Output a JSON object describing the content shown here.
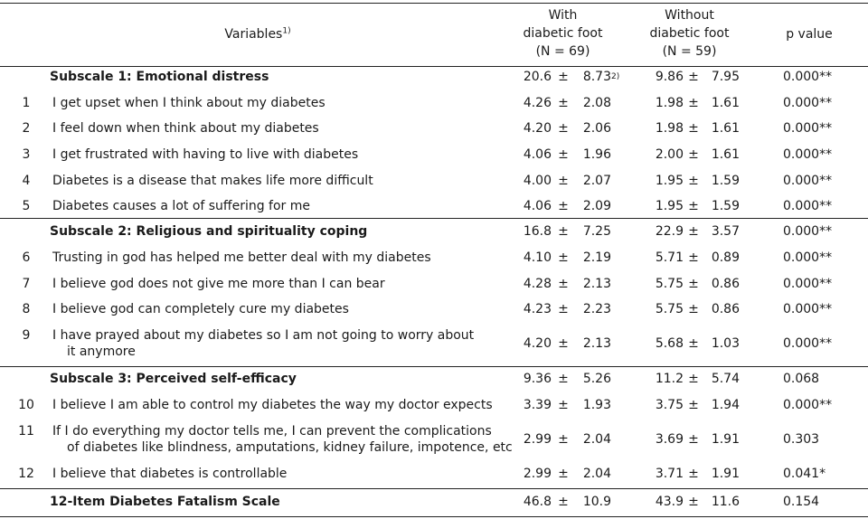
{
  "header": {
    "variables": "Variables",
    "variables_sup": "1)",
    "with_line1": "With",
    "with_line2": "diabetic foot",
    "with_line3": "(N = 69)",
    "without_line1": "Without",
    "without_line2": "diabetic foot",
    "without_line3": "(N = 59)",
    "pvalue": "p value"
  },
  "pm": "±",
  "rows": [
    {
      "kind": "subscale",
      "label": "Subscale 1: Emotional distress",
      "w_mean": "20.6",
      "w_sd": "8.73",
      "w_sup": "2)",
      "wo_mean": "9.86",
      "wo_sd": "7.95",
      "p": "0.000**"
    },
    {
      "kind": "item",
      "num": "1",
      "label": "I get upset when I think about my diabetes",
      "w_mean": "4.26",
      "w_sd": "2.08",
      "wo_mean": "1.98",
      "wo_sd": "1.61",
      "p": "0.000**"
    },
    {
      "kind": "item",
      "num": "2",
      "label": "I feel down when think about my diabetes",
      "w_mean": "4.20",
      "w_sd": "2.06",
      "wo_mean": "1.98",
      "wo_sd": "1.61",
      "p": "0.000**"
    },
    {
      "kind": "item",
      "num": "3",
      "label": "I get frustrated with having to live with diabetes",
      "w_mean": "4.06",
      "w_sd": "1.96",
      "wo_mean": "2.00",
      "wo_sd": "1.61",
      "p": "0.000**"
    },
    {
      "kind": "item",
      "num": "4",
      "label": "Diabetes is a disease that makes life more difficult",
      "w_mean": "4.00",
      "w_sd": "2.07",
      "wo_mean": "1.95",
      "wo_sd": "1.59",
      "p": "0.000**"
    },
    {
      "kind": "item",
      "num": "5",
      "label": "Diabetes causes a lot of suffering for me",
      "w_mean": "4.06",
      "w_sd": "2.09",
      "wo_mean": "1.95",
      "wo_sd": "1.59",
      "p": "0.000**"
    },
    {
      "kind": "subscale",
      "label": "Subscale 2: Religious and spirituality coping",
      "w_mean": "16.8",
      "w_sd": "7.25",
      "wo_mean": "22.9",
      "wo_sd": "3.57",
      "p": "0.000**"
    },
    {
      "kind": "item",
      "num": "6",
      "label": "Trusting in god has helped me better deal with my diabetes",
      "w_mean": "4.10",
      "w_sd": "2.19",
      "wo_mean": "5.71",
      "wo_sd": "0.89",
      "p": "0.000**"
    },
    {
      "kind": "item",
      "num": "7",
      "label": "I believe god does not give me more than I can bear",
      "w_mean": "4.28",
      "w_sd": "2.13",
      "wo_mean": "5.75",
      "wo_sd": "0.86",
      "p": "0.000**"
    },
    {
      "kind": "item",
      "num": "8",
      "label": "I believe god can completely cure my diabetes",
      "w_mean": "4.23",
      "w_sd": "2.23",
      "wo_mean": "5.75",
      "wo_sd": "0.86",
      "p": "0.000**"
    },
    {
      "kind": "item",
      "num": "9",
      "label": "I have prayed about my diabetes so I am not going to worry about",
      "label2": "it anymore",
      "w_mean": "4.20",
      "w_sd": "2.13",
      "wo_mean": "5.68",
      "wo_sd": "1.03",
      "p": "0.000**"
    },
    {
      "kind": "subscale",
      "label": "Subscale 3: Perceived self-efficacy",
      "w_mean": "9.36",
      "w_sd": "5.26",
      "wo_mean": "11.2",
      "wo_sd": "5.74",
      "p": "0.068"
    },
    {
      "kind": "item",
      "num": "10",
      "label": "I believe I am able to control my diabetes the way my doctor expects",
      "w_mean": "3.39",
      "w_sd": "1.93",
      "wo_mean": "3.75",
      "wo_sd": "1.94",
      "p": "0.000**"
    },
    {
      "kind": "item",
      "num": "11",
      "label": "If I do everything my doctor tells me, I can prevent the complications",
      "label2": "of diabetes like blindness, amputations, kidney failure, impotence, etc",
      "w_mean": "2.99",
      "w_sd": "2.04",
      "wo_mean": "3.69",
      "wo_sd": "1.91",
      "p": "0.303"
    },
    {
      "kind": "item",
      "num": "12",
      "label": "I believe that diabetes is controllable",
      "w_mean": "2.99",
      "w_sd": "2.04",
      "wo_mean": "3.71",
      "wo_sd": "1.91",
      "p": "0.041*"
    },
    {
      "kind": "total",
      "label": "12-Item Diabetes Fatalism Scale",
      "w_mean": "46.8",
      "w_sd": "10.9",
      "wo_mean": "43.9",
      "wo_sd": "11.6",
      "p": "0.154"
    }
  ]
}
